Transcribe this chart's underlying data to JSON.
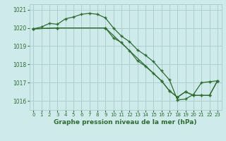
{
  "title": "Graphe pression niveau de la mer (hPa)",
  "bg_color": "#ceeaea",
  "grid_color": "#aacece",
  "line_color": "#2d6e2d",
  "xlim": [
    -0.5,
    23.5
  ],
  "ylim": [
    1015.5,
    1021.3
  ],
  "yticks": [
    1016,
    1017,
    1018,
    1019,
    1020,
    1021
  ],
  "xticks": [
    0,
    1,
    2,
    3,
    4,
    5,
    6,
    7,
    8,
    9,
    10,
    11,
    12,
    13,
    14,
    15,
    16,
    17,
    18,
    19,
    20,
    21,
    22,
    23
  ],
  "line1_x": [
    0,
    1,
    2,
    3,
    4,
    5,
    6,
    7,
    8,
    9,
    10,
    11,
    12,
    13,
    14,
    15,
    16,
    17,
    18,
    19,
    20,
    21,
    22,
    23
  ],
  "line1_y": [
    1019.95,
    1020.05,
    1020.25,
    1020.2,
    1020.5,
    1020.6,
    1020.75,
    1020.8,
    1020.75,
    1020.55,
    1020.0,
    1019.55,
    1019.25,
    1018.8,
    1018.5,
    1018.15,
    1017.65,
    1017.15,
    1016.05,
    1016.1,
    1016.35,
    1017.0,
    1017.05,
    1017.1
  ],
  "line2_x": [
    0,
    3,
    9,
    10,
    11,
    12,
    13,
    14,
    15,
    16,
    17,
    18,
    19,
    20,
    21,
    22,
    23
  ],
  "line2_y": [
    1019.95,
    1020.0,
    1020.0,
    1019.45,
    1019.2,
    1018.75,
    1018.2,
    1017.9,
    1017.5,
    1017.1,
    1016.55,
    1016.2,
    1016.5,
    1016.3,
    1016.3,
    1016.3,
    1017.1
  ],
  "line3_x": [
    0,
    3,
    9,
    16,
    17,
    18,
    19,
    20,
    21,
    22,
    23
  ],
  "line3_y": [
    1019.95,
    1020.0,
    1020.0,
    1017.1,
    1016.55,
    1016.2,
    1016.5,
    1016.3,
    1016.3,
    1016.3,
    1017.1
  ]
}
